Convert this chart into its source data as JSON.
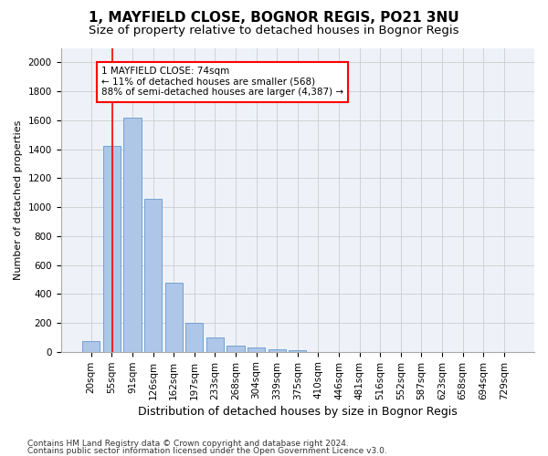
{
  "title1": "1, MAYFIELD CLOSE, BOGNOR REGIS, PO21 3NU",
  "title2": "Size of property relative to detached houses in Bognor Regis",
  "xlabel": "Distribution of detached houses by size in Bognor Regis",
  "ylabel": "Number of detached properties",
  "bins": [
    "20sqm",
    "55sqm",
    "91sqm",
    "126sqm",
    "162sqm",
    "197sqm",
    "233sqm",
    "268sqm",
    "304sqm",
    "339sqm",
    "375sqm",
    "410sqm",
    "446sqm",
    "481sqm",
    "516sqm",
    "552sqm",
    "587sqm",
    "623sqm",
    "658sqm",
    "694sqm",
    "729sqm"
  ],
  "values": [
    75,
    1420,
    1620,
    1060,
    480,
    200,
    100,
    40,
    30,
    20,
    10,
    0,
    0,
    0,
    0,
    0,
    0,
    0,
    0,
    0,
    0
  ],
  "bar_color": "#aec6e8",
  "bar_edge_color": "#6699cc",
  "vline_color": "red",
  "annotation_text": "1 MAYFIELD CLOSE: 74sqm\n← 11% of detached houses are smaller (568)\n88% of semi-detached houses are larger (4,387) →",
  "annotation_box_color": "white",
  "annotation_box_edge_color": "red",
  "ylim": [
    0,
    2100
  ],
  "yticks": [
    0,
    200,
    400,
    600,
    800,
    1000,
    1200,
    1400,
    1600,
    1800,
    2000
  ],
  "footer1": "Contains HM Land Registry data © Crown copyright and database right 2024.",
  "footer2": "Contains public sector information licensed under the Open Government Licence v3.0.",
  "bg_color": "#ffffff",
  "plot_bg_color": "#eef2f8",
  "title1_fontsize": 11,
  "title2_fontsize": 9.5,
  "xlabel_fontsize": 9,
  "ylabel_fontsize": 8,
  "tick_fontsize": 7.5,
  "footer_fontsize": 6.5,
  "annot_fontsize": 7.5
}
